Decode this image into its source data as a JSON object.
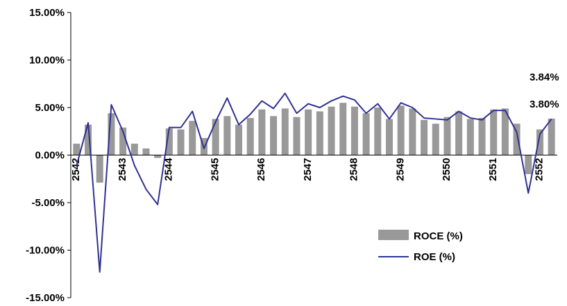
{
  "chart_data": {
    "type": "bar",
    "title": "",
    "xlabel": "",
    "ylabel": "",
    "ylim": [
      -15,
      15
    ],
    "y_ticks": [
      "15.00%",
      "10.00%",
      "5.00%",
      "0.00%",
      "-5.00%",
      "-10.00%",
      "-15.00%"
    ],
    "x_tick_labels": [
      "2542",
      "2543",
      "2544",
      "2545",
      "2546",
      "2547",
      "2548",
      "2549",
      "2550",
      "2551",
      "2552"
    ],
    "grid": false,
    "legend_position": "bottom-right",
    "colors": {
      "roce": "#999999",
      "roe": "#2e3192"
    },
    "series": [
      {
        "name": "ROCE (%)",
        "kind": "bar",
        "values": [
          1.2,
          3.2,
          -2.9,
          4.4,
          2.9,
          1.2,
          0.7,
          -0.3,
          2.8,
          2.7,
          3.6,
          1.8,
          3.8,
          4.1,
          3.2,
          3.9,
          4.8,
          4.1,
          4.9,
          4.0,
          4.8,
          4.6,
          5.1,
          5.5,
          5.1,
          4.4,
          5.0,
          3.8,
          5.2,
          4.9,
          3.7,
          3.3,
          4.0,
          4.6,
          3.8,
          3.9,
          4.8,
          4.9,
          3.3,
          -2.0,
          2.7,
          3.84
        ]
      },
      {
        "name": "ROE (%)",
        "kind": "line",
        "values": [
          -1.1,
          3.4,
          -12.3,
          5.3,
          2.5,
          -1.1,
          -3.6,
          -5.2,
          2.9,
          2.9,
          4.6,
          0.7,
          3.5,
          6.0,
          3.2,
          4.3,
          5.7,
          4.9,
          6.5,
          4.4,
          5.4,
          5.0,
          5.7,
          6.2,
          5.8,
          4.4,
          5.4,
          3.8,
          5.5,
          5.0,
          3.9,
          3.8,
          3.7,
          4.6,
          3.9,
          3.7,
          4.7,
          4.7,
          2.4,
          -4.0,
          2.2,
          3.8
        ]
      }
    ],
    "annotations": [
      "3.84%",
      "3.80%"
    ]
  }
}
